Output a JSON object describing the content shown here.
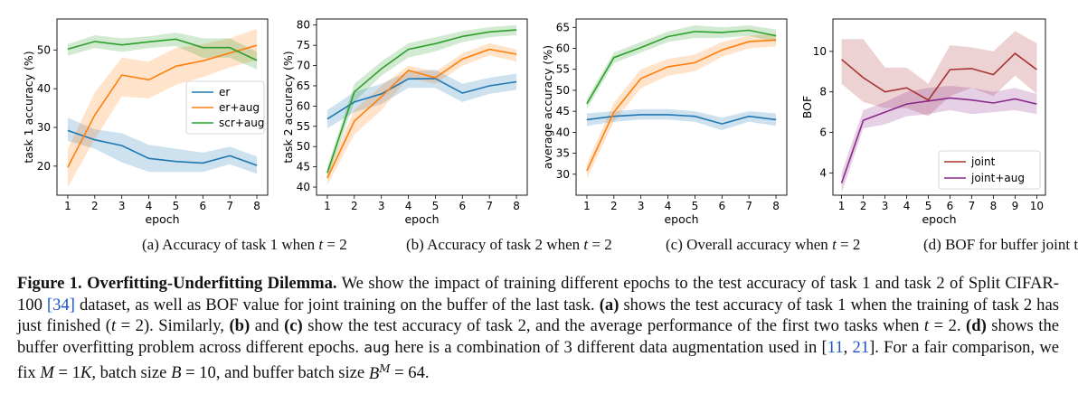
{
  "chart_data": [
    {
      "type": "line",
      "ylabel": "task 1 accuracy (%)",
      "xlabel": "epoch",
      "xlim": [
        0.6,
        8.4
      ],
      "ylim": [
        12.5,
        58
      ],
      "xticks": [
        1,
        2,
        3,
        4,
        5,
        6,
        7,
        8
      ],
      "yticks": [
        20,
        30,
        40,
        50
      ],
      "grid": false,
      "legend": "center-right",
      "x": [
        1,
        2,
        3,
        4,
        5,
        6,
        7,
        8
      ],
      "series": [
        {
          "name": "er",
          "color": "#1f77b4",
          "values": [
            29.2,
            26.8,
            25.3,
            22.0,
            21.2,
            20.8,
            22.7,
            20.2
          ],
          "lower": [
            26.5,
            24.5,
            21.0,
            18.5,
            18.5,
            18.5,
            20.5,
            18.0
          ],
          "upper": [
            32.5,
            29.5,
            28.5,
            25.5,
            24.5,
            23.5,
            25.0,
            22.5
          ]
        },
        {
          "name": "er+aug",
          "color": "#ff7f0e",
          "values": [
            19.7,
            33.2,
            43.5,
            42.3,
            45.8,
            47.2,
            49.2,
            51.2
          ],
          "lower": [
            14.5,
            27.0,
            38.0,
            37.5,
            41.0,
            43.0,
            45.5,
            47.5
          ],
          "upper": [
            24.5,
            39.0,
            48.0,
            47.0,
            50.5,
            51.5,
            53.0,
            55.5
          ]
        },
        {
          "name": "scr+aug",
          "color": "#2ca02c",
          "values": [
            50.2,
            52.2,
            51.3,
            52.1,
            52.8,
            50.6,
            50.6,
            47.3
          ],
          "lower": [
            48.5,
            50.5,
            49.5,
            50.5,
            51.0,
            48.0,
            48.0,
            45.0
          ],
          "upper": [
            51.5,
            53.8,
            53.0,
            53.5,
            54.5,
            53.0,
            53.0,
            49.5
          ]
        }
      ]
    },
    {
      "type": "line",
      "ylabel": "task 2 accuracy (%)",
      "xlabel": "epoch",
      "xlim": [
        0.6,
        8.4
      ],
      "ylim": [
        38,
        81.5
      ],
      "xticks": [
        1,
        2,
        3,
        4,
        5,
        6,
        7,
        8
      ],
      "yticks": [
        40,
        45,
        50,
        55,
        60,
        65,
        70,
        75,
        80
      ],
      "grid": false,
      "x": [
        1,
        2,
        3,
        4,
        5,
        6,
        7,
        8
      ],
      "series": [
        {
          "color": "#1f77b4",
          "values": [
            56.8,
            61.0,
            63.0,
            66.7,
            66.8,
            63.2,
            65.0,
            66.0
          ],
          "lower": [
            54.5,
            58.5,
            60.5,
            64.5,
            64.5,
            61.0,
            63.0,
            64.0
          ],
          "upper": [
            59.0,
            63.5,
            65.5,
            68.5,
            69.0,
            65.5,
            67.0,
            68.0
          ]
        },
        {
          "color": "#ff7f0e",
          "values": [
            42.2,
            56.3,
            62.3,
            68.8,
            67.0,
            71.6,
            74.0,
            72.8
          ],
          "lower": [
            40.5,
            53.0,
            59.0,
            67.0,
            65.5,
            70.0,
            72.5,
            71.0
          ],
          "upper": [
            44.0,
            59.0,
            65.0,
            70.0,
            68.5,
            73.0,
            75.5,
            74.0
          ]
        },
        {
          "color": "#2ca02c",
          "values": [
            43.5,
            63.5,
            69.2,
            74.0,
            75.4,
            77.2,
            78.3,
            78.8
          ],
          "lower": [
            42.0,
            61.0,
            67.5,
            72.0,
            73.5,
            75.8,
            77.0,
            77.5
          ],
          "upper": [
            45.0,
            65.5,
            71.0,
            75.5,
            77.0,
            78.5,
            79.5,
            80.0
          ]
        }
      ]
    },
    {
      "type": "line",
      "ylabel": "average accuracy (%)",
      "xlabel": "epoch",
      "xlim": [
        0.6,
        8.4
      ],
      "ylim": [
        25,
        67
      ],
      "xticks": [
        1,
        2,
        3,
        4,
        5,
        6,
        7,
        8
      ],
      "yticks": [
        30,
        35,
        40,
        45,
        50,
        55,
        60,
        65
      ],
      "grid": false,
      "x": [
        1,
        2,
        3,
        4,
        5,
        6,
        7,
        8
      ],
      "series": [
        {
          "color": "#1f77b4",
          "values": [
            43.0,
            43.8,
            44.2,
            44.2,
            43.8,
            42.0,
            43.8,
            43.0
          ],
          "lower": [
            41.5,
            42.5,
            43.0,
            43.0,
            42.5,
            40.5,
            42.5,
            41.5
          ],
          "upper": [
            44.5,
            45.0,
            45.5,
            45.5,
            45.0,
            43.5,
            45.0,
            44.5
          ]
        },
        {
          "color": "#ff7f0e",
          "values": [
            30.8,
            44.8,
            52.8,
            55.6,
            56.6,
            59.6,
            61.6,
            62.0
          ],
          "lower": [
            29.0,
            42.5,
            50.5,
            53.5,
            54.5,
            58.0,
            60.0,
            60.5
          ],
          "upper": [
            32.5,
            47.0,
            55.0,
            57.5,
            58.5,
            61.5,
            63.0,
            63.5
          ]
        },
        {
          "color": "#2ca02c",
          "values": [
            46.8,
            57.8,
            60.2,
            62.8,
            64.0,
            63.8,
            64.3,
            63.0
          ],
          "lower": [
            45.5,
            56.5,
            59.0,
            61.5,
            62.5,
            62.5,
            63.0,
            61.5
          ],
          "upper": [
            48.0,
            59.0,
            61.5,
            64.0,
            65.5,
            65.0,
            65.5,
            64.5
          ]
        }
      ]
    },
    {
      "type": "line",
      "ylabel": "BOF",
      "xlabel": "epoch",
      "xlim": [
        0.6,
        10.4
      ],
      "ylim": [
        2.9,
        11.6
      ],
      "xticks": [
        1,
        2,
        3,
        4,
        5,
        6,
        7,
        8,
        9,
        10
      ],
      "yticks": [
        4,
        6,
        8,
        10
      ],
      "grid": false,
      "legend": "lower-right",
      "x": [
        1,
        2,
        3,
        4,
        5,
        6,
        7,
        8,
        9,
        10
      ],
      "series": [
        {
          "name": "joint",
          "color": "#a83232",
          "values": [
            9.6,
            8.7,
            8.0,
            8.2,
            7.6,
            9.1,
            9.15,
            8.85,
            9.9,
            9.1
          ],
          "lower": [
            8.4,
            7.5,
            7.2,
            7.2,
            6.8,
            7.8,
            8.2,
            7.8,
            8.8,
            7.9
          ],
          "upper": [
            10.6,
            10.6,
            9.2,
            9.2,
            8.4,
            10.3,
            10.2,
            10.0,
            11.0,
            10.4
          ]
        },
        {
          "name": "joint+aug",
          "color": "#8b2a8b",
          "values": [
            3.5,
            6.6,
            7.0,
            7.4,
            7.55,
            7.7,
            7.6,
            7.45,
            7.65,
            7.4
          ],
          "lower": [
            3.0,
            6.2,
            6.4,
            6.8,
            6.9,
            7.1,
            6.9,
            7.0,
            7.1,
            6.9
          ],
          "upper": [
            4.0,
            7.1,
            7.5,
            8.0,
            8.2,
            8.3,
            8.2,
            8.0,
            8.2,
            7.9
          ]
        }
      ]
    }
  ],
  "subcaptions": [
    {
      "prefix": "(a) Accuracy of task 1 when ",
      "var": "t",
      "suffix": " = 2"
    },
    {
      "prefix": "(b) Accuracy of task 2 when ",
      "var": "t",
      "suffix": " = 2"
    },
    {
      "prefix": "(c) Overall accuracy when ",
      "var": "t",
      "suffix": " = 2"
    },
    {
      "prefix": "(d) BOF for buffer joint training",
      "var": "",
      "suffix": ""
    }
  ],
  "caption": {
    "label": "Figure 1.",
    "title": "Overfitting-Underfitting Dilemma.",
    "p1": "We show the impact of training different epochs to the test accuracy of task 1 and task 2 of Split CIFAR-100",
    "ref1": "[34]",
    "p2": "dataset, as well as BOF value for joint training on the buffer of the last task.",
    "a": "(a)",
    "p3": "shows the test accuracy of task 1 when the training of task 2 has just finished (",
    "t": "t",
    "p4": " = 2). Similarly,",
    "b": "(b)",
    "and": "and",
    "c": "(c)",
    "p5": "show the test accuracy of task 2, and the average performance of the first two tasks when",
    "p6": " = 2.",
    "d": "(d)",
    "p7": "shows the buffer overfitting problem across different epochs.",
    "aug": "aug",
    "p8": "here is a combination of 3 different data augmentation used in [",
    "ref2a": "11",
    "comma": ", ",
    "ref2b": "21",
    "p9": "]. For a fair comparison, we fix",
    "M": "M",
    "p10": " = 1",
    "K": "K",
    "p11": ", batch size",
    "B": "B",
    "p12": " = 10, and buffer batch size",
    "Bsup": "M",
    "p13": " = 64."
  }
}
